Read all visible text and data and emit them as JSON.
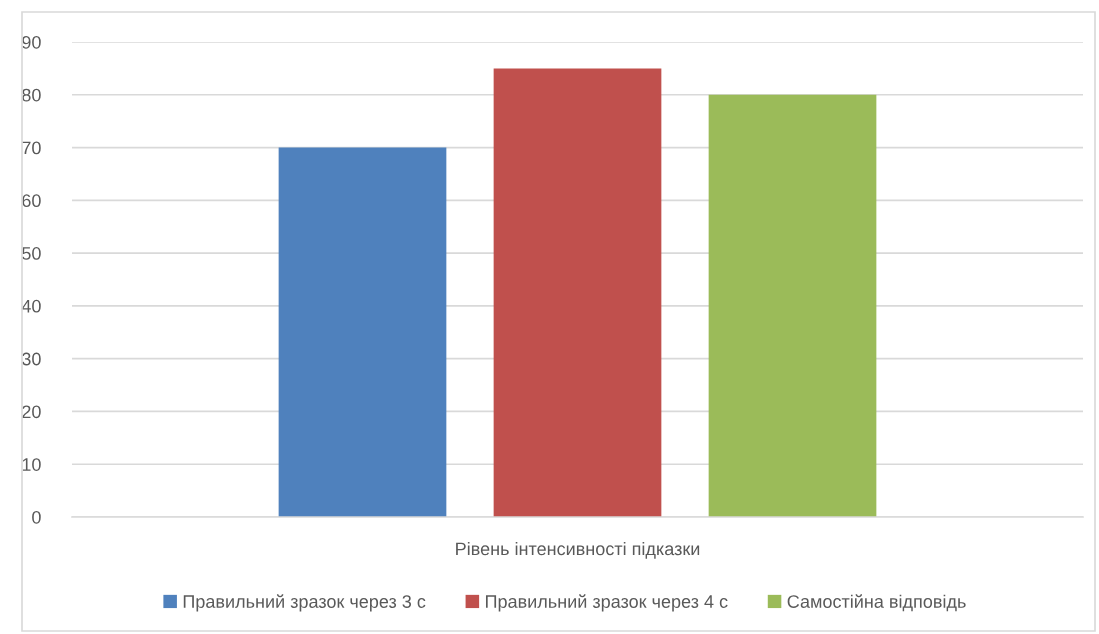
{
  "chart_data": {
    "type": "bar",
    "categories": [
      "Рівень інтенсивності підказки"
    ],
    "series": [
      {
        "name": "Правильний зразок через 3 с",
        "color": "#4f81bd",
        "values": [
          70
        ]
      },
      {
        "name": "Правильний зразок через 4 с",
        "color": "#c0504d",
        "values": [
          85
        ]
      },
      {
        "name": "Самостійна відповідь",
        "color": "#9bbb59",
        "values": [
          80
        ]
      }
    ],
    "ylim": [
      0,
      90
    ],
    "yticks": [
      0,
      10,
      20,
      30,
      40,
      50,
      60,
      70,
      80,
      90
    ],
    "grid": "y",
    "legend": "bottom"
  }
}
